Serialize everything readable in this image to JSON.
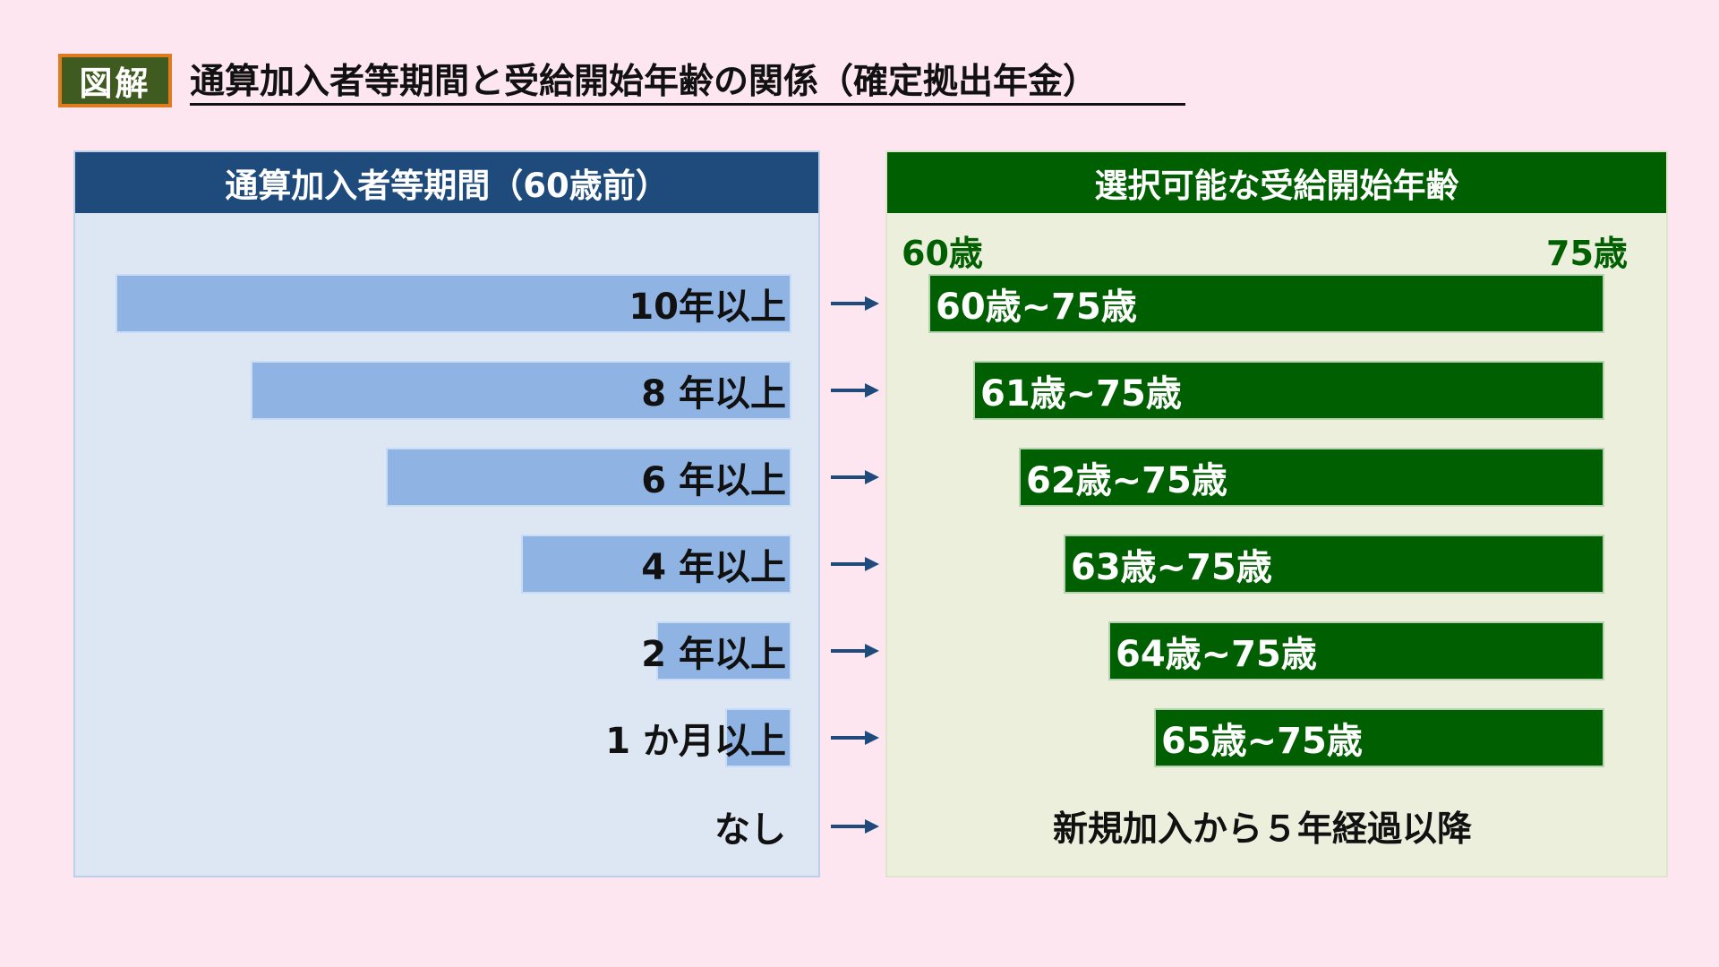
{
  "colors": {
    "background": "#fde6f0",
    "badge_bg": "#3f5b1f",
    "badge_border": "#e07a1e",
    "left_header": "#1f4b7c",
    "left_panel": "#dde7f3",
    "left_bar": "#8fb4e3",
    "right_header": "#005f00",
    "right_panel": "#ecefdc",
    "right_bar": "#005f00",
    "arrow": "#1f4b7c"
  },
  "badge": "図解",
  "title": "通算加入者等期間と受給開始年齢の関係（確定拠出年金）",
  "left_header": "通算加入者等期間（60歳前）",
  "right_header": "選択可能な受給開始年齢",
  "age_min_label": "60歳",
  "age_max_label": "75歳",
  "rows": [
    {
      "period": "10年以上",
      "period_years": 10,
      "range": "60歳~75歳",
      "start_age": 60
    },
    {
      "period": "8 年以上",
      "period_years": 8,
      "range": "61歳~75歳",
      "start_age": 61
    },
    {
      "period": "6 年以上",
      "period_years": 6,
      "range": "62歳~75歳",
      "start_age": 62
    },
    {
      "period": "4 年以上",
      "period_years": 4,
      "range": "63歳~75歳",
      "start_age": 63
    },
    {
      "period": "2 年以上",
      "period_years": 2,
      "range": "64歳~75歳",
      "start_age": 64
    },
    {
      "period": "1 か月以上",
      "period_years": 0.08,
      "range": "65歳~75歳",
      "start_age": 65
    }
  ],
  "none_row": {
    "period": "なし",
    "note": "新規加入から５年経過以降"
  }
}
